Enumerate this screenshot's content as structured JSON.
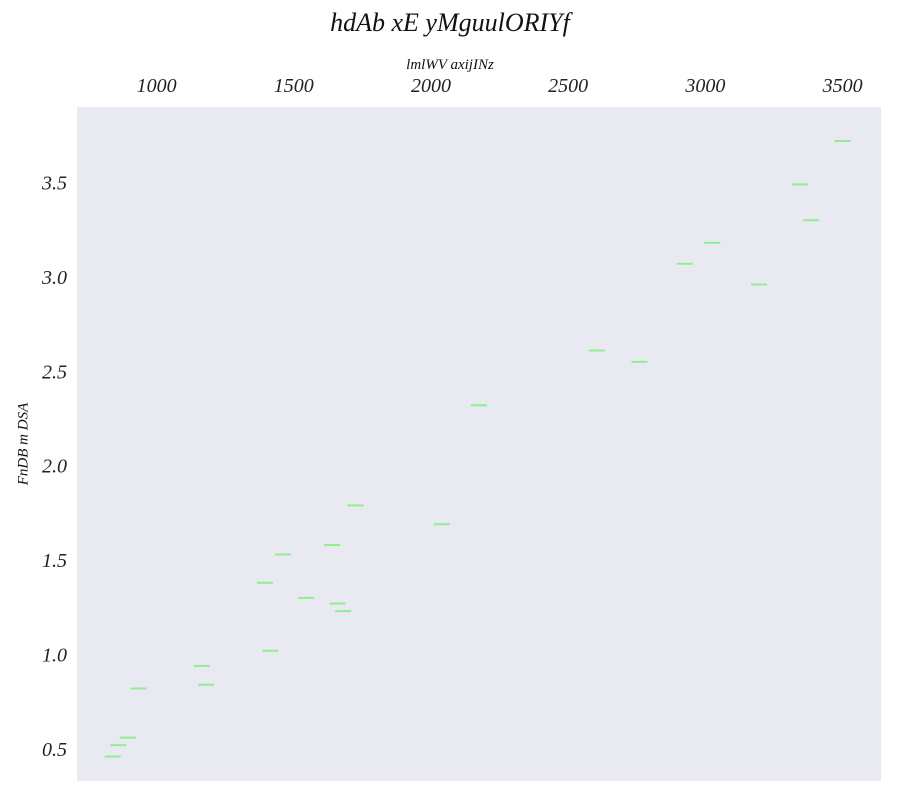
{
  "chart_data": {
    "type": "scatter",
    "title": "hdAb xE yMguulORIYf",
    "xlabel": "lmlWV axijINz",
    "ylabel": "FnDB m DSA",
    "x_axis_position": "top",
    "xlim": [
      710,
      3640
    ],
    "ylim": [
      0.33,
      3.9
    ],
    "xticks": [
      1000,
      1500,
      2000,
      2500,
      3000,
      3500
    ],
    "yticks": [
      0.5,
      1.0,
      1.5,
      2.0,
      2.5,
      3.0,
      3.5
    ],
    "xtick_labels": [
      "1000",
      "1500",
      "2000",
      "2500",
      "3000",
      "3500"
    ],
    "ytick_labels": [
      "0.5",
      "1.0",
      "1.5",
      "2.0",
      "2.5",
      "3.0",
      "3.5"
    ],
    "grid": false,
    "marker": "hline",
    "colors": {
      "marker": "#90ee90",
      "plot_background": "#e9e9f1"
    },
    "points": [
      {
        "x": 840,
        "y": 0.46
      },
      {
        "x": 860,
        "y": 0.52
      },
      {
        "x": 895,
        "y": 0.56
      },
      {
        "x": 935,
        "y": 0.82
      },
      {
        "x": 1165,
        "y": 0.94
      },
      {
        "x": 1180,
        "y": 0.84
      },
      {
        "x": 1395,
        "y": 1.38
      },
      {
        "x": 1415,
        "y": 1.02
      },
      {
        "x": 1460,
        "y": 1.53
      },
      {
        "x": 1545,
        "y": 1.3
      },
      {
        "x": 1640,
        "y": 1.58
      },
      {
        "x": 1660,
        "y": 1.27
      },
      {
        "x": 1680,
        "y": 1.23
      },
      {
        "x": 1725,
        "y": 1.79
      },
      {
        "x": 2040,
        "y": 1.69
      },
      {
        "x": 2175,
        "y": 2.32
      },
      {
        "x": 2605,
        "y": 2.61
      },
      {
        "x": 2760,
        "y": 2.55
      },
      {
        "x": 2925,
        "y": 3.07
      },
      {
        "x": 3025,
        "y": 3.18
      },
      {
        "x": 3195,
        "y": 2.96
      },
      {
        "x": 3345,
        "y": 3.49
      },
      {
        "x": 3385,
        "y": 3.3
      },
      {
        "x": 3500,
        "y": 3.72
      }
    ]
  }
}
